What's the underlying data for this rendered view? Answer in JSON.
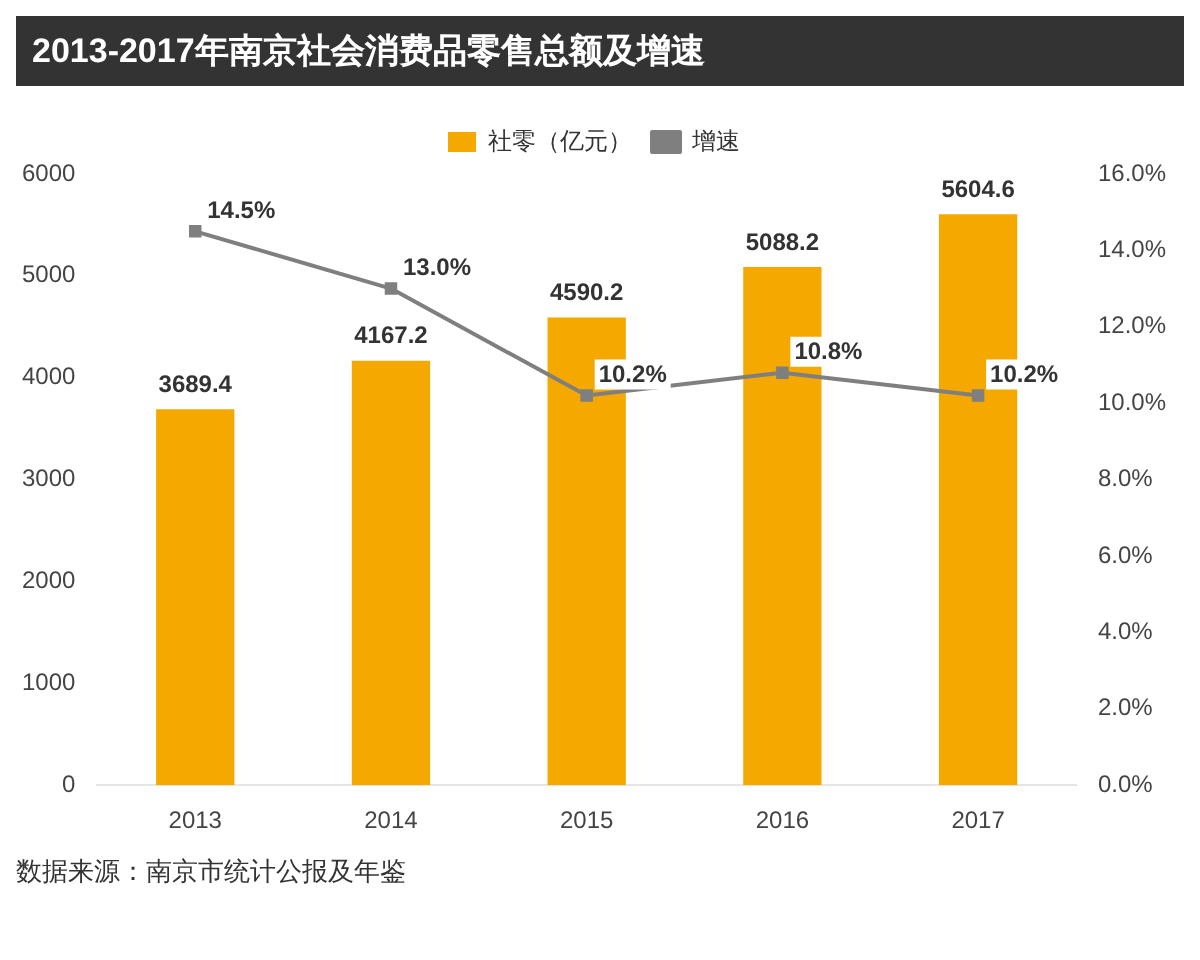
{
  "chart_data": {
    "type": "bar",
    "title": "2013-2017年南京社会消费品零售总额及增速",
    "categories": [
      "2013",
      "2014",
      "2015",
      "2016",
      "2017"
    ],
    "series": [
      {
        "name": "社零（亿元）",
        "color": "#f5a800",
        "values": [
          3689.4,
          4167.2,
          4590.2,
          5088.2,
          5604.6
        ],
        "value_labels": [
          "3689.4",
          "4167.2",
          "4590.2",
          "5088.2",
          "5604.6"
        ]
      },
      {
        "name": "增速",
        "type": "line",
        "axis": "y2",
        "color": "#7f7f7f",
        "values": [
          14.5,
          13.0,
          10.2,
          10.8,
          10.2
        ],
        "value_labels": [
          "14.5%",
          "13.0%",
          "10.2%",
          "10.8%",
          "10.2%"
        ]
      }
    ],
    "ylim": [
      0,
      6000
    ],
    "yticks": [
      0,
      1000,
      2000,
      3000,
      4000,
      5000,
      6000
    ],
    "y2lim": [
      0,
      16
    ],
    "y2ticks": [
      {
        "value": 0,
        "label": "0.0%"
      },
      {
        "value": 2,
        "label": "2.0%"
      },
      {
        "value": 4,
        "label": "4.0%"
      },
      {
        "value": 6,
        "label": "6.0%"
      },
      {
        "value": 8,
        "label": "8.0%"
      },
      {
        "value": 10,
        "label": "10.0%"
      },
      {
        "value": 12,
        "label": "12.0%"
      },
      {
        "value": 14,
        "label": "14.0%"
      },
      {
        "value": 16,
        "label": "16.0%"
      }
    ],
    "grid": false,
    "legend": "top",
    "marker": "square",
    "line_style": "solid",
    "annotations": [
      "数据来源：南京市统计公报及年鉴"
    ]
  }
}
